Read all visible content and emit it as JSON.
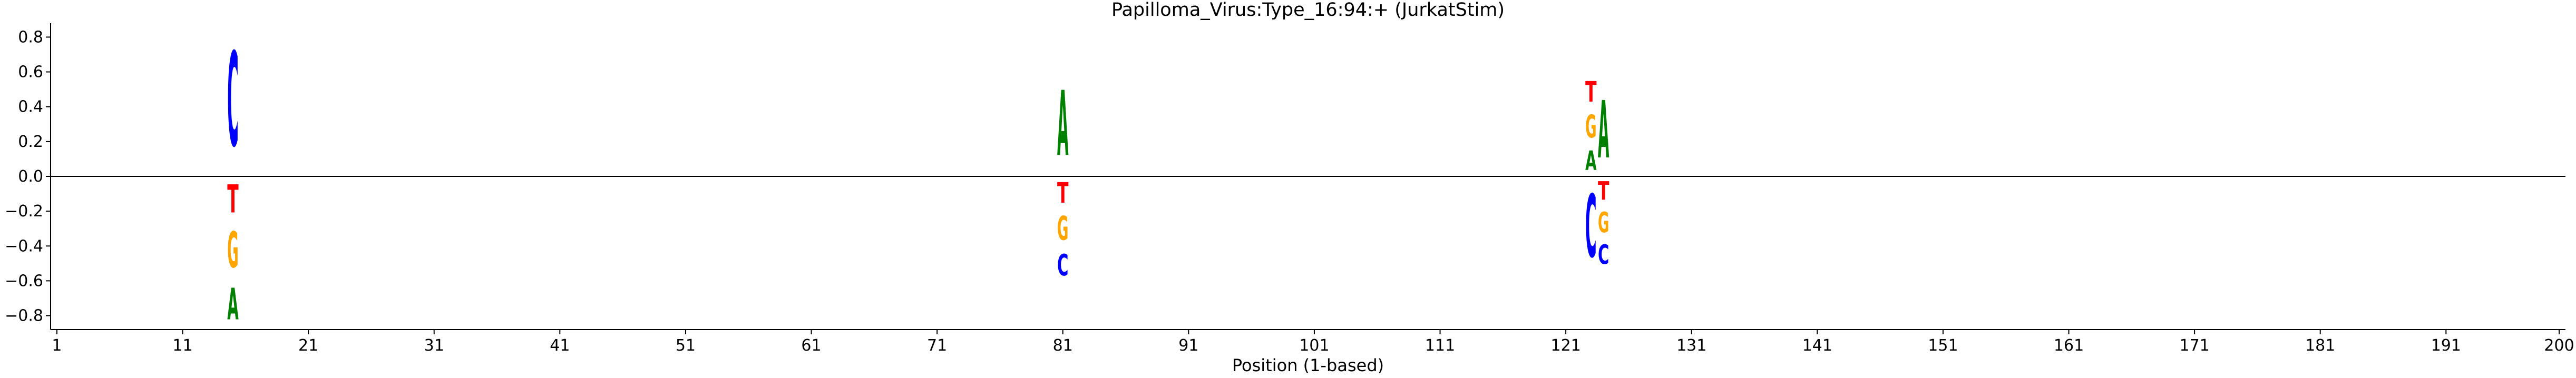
{
  "chart_data": {
    "type": "sequence-logo",
    "title": "Papilloma_Virus:Type_16:94:+  (JurkatStim)",
    "xlabel": "Position (1-based)",
    "ylabel": "",
    "xlim": [
      0.5,
      200.5
    ],
    "ylim": [
      -0.88,
      0.88
    ],
    "xticks": [
      1,
      11,
      21,
      31,
      41,
      51,
      61,
      71,
      81,
      91,
      101,
      111,
      121,
      131,
      141,
      151,
      161,
      171,
      181,
      191,
      200
    ],
    "yticks": [
      -0.8,
      -0.6,
      -0.4,
      -0.2,
      0.0,
      0.2,
      0.4,
      0.6,
      0.8
    ],
    "ytick_labels": [
      "−0.8",
      "−0.6",
      "−0.4",
      "−0.2",
      "0.0",
      "0.2",
      "0.4",
      "0.6",
      "0.8"
    ],
    "colors": {
      "A": "#008000",
      "C": "#0000ff",
      "G": "#ffa500",
      "T": "#ff0000"
    },
    "positions": [
      {
        "x": 15,
        "letters": [
          {
            "base": "C",
            "y0": 0.0,
            "y1": 0.87
          },
          {
            "base": "T",
            "y0": -0.26,
            "y1": 0.0
          },
          {
            "base": "G",
            "y0": -0.59,
            "y1": -0.26
          },
          {
            "base": "A",
            "y0": -0.88,
            "y1": -0.59
          }
        ]
      },
      {
        "x": 81,
        "letters": [
          {
            "base": "A",
            "y0": 0.0,
            "y1": 0.6
          },
          {
            "base": "T",
            "y0": -0.19,
            "y1": 0.0
          },
          {
            "base": "G",
            "y0": -0.41,
            "y1": -0.19
          },
          {
            "base": "C",
            "y0": -0.61,
            "y1": -0.41
          }
        ]
      },
      {
        "x": 123,
        "letters": [
          {
            "base": "A",
            "y0": 0.0,
            "y1": 0.18
          },
          {
            "base": "G",
            "y0": 0.18,
            "y1": 0.39
          },
          {
            "base": "T",
            "y0": 0.39,
            "y1": 0.58
          },
          {
            "base": "C",
            "y0": -0.58,
            "y1": 0.0
          }
        ]
      },
      {
        "x": 124,
        "letters": [
          {
            "base": "A",
            "y0": 0.0,
            "y1": 0.53
          },
          {
            "base": "T",
            "y0": -0.17,
            "y1": 0.0
          },
          {
            "base": "G",
            "y0": -0.36,
            "y1": -0.17
          },
          {
            "base": "C",
            "y0": -0.54,
            "y1": -0.36
          }
        ]
      }
    ]
  }
}
